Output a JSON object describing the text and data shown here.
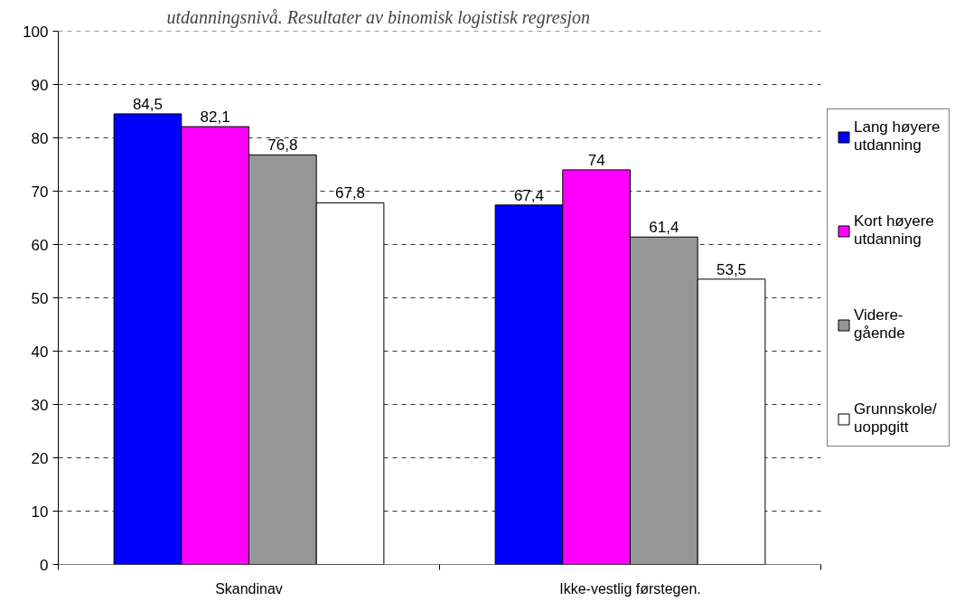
{
  "chart_data": {
    "type": "bar",
    "title": "utdanningsnivå. Resultater av binomisk logistisk regresjon",
    "categories": [
      "Skandinav",
      "Ikke-vestlig førstegen."
    ],
    "series": [
      {
        "name": "Lang høyere utdanning",
        "color": "#0000ff",
        "values": [
          84.5,
          67.4
        ],
        "value_labels": [
          "84,5",
          "67,4"
        ]
      },
      {
        "name": "Kort høyere utdanning",
        "color": "#ff00ff",
        "values": [
          82.1,
          74
        ],
        "value_labels": [
          "82,1",
          "74"
        ]
      },
      {
        "name": "Videre-gående",
        "color": "#969696",
        "values": [
          76.8,
          61.4
        ],
        "value_labels": [
          "76,8",
          "61,4"
        ]
      },
      {
        "name": "Grunnskole/uoppgitt",
        "color": "#ffffff",
        "values": [
          67.8,
          53.5
        ],
        "value_labels": [
          "67,8",
          "53,5"
        ]
      }
    ],
    "ylim": [
      0,
      100
    ],
    "yticks": [
      0,
      10,
      20,
      30,
      40,
      50,
      60,
      70,
      80,
      90,
      100
    ],
    "grid": "y",
    "legend": "right"
  }
}
